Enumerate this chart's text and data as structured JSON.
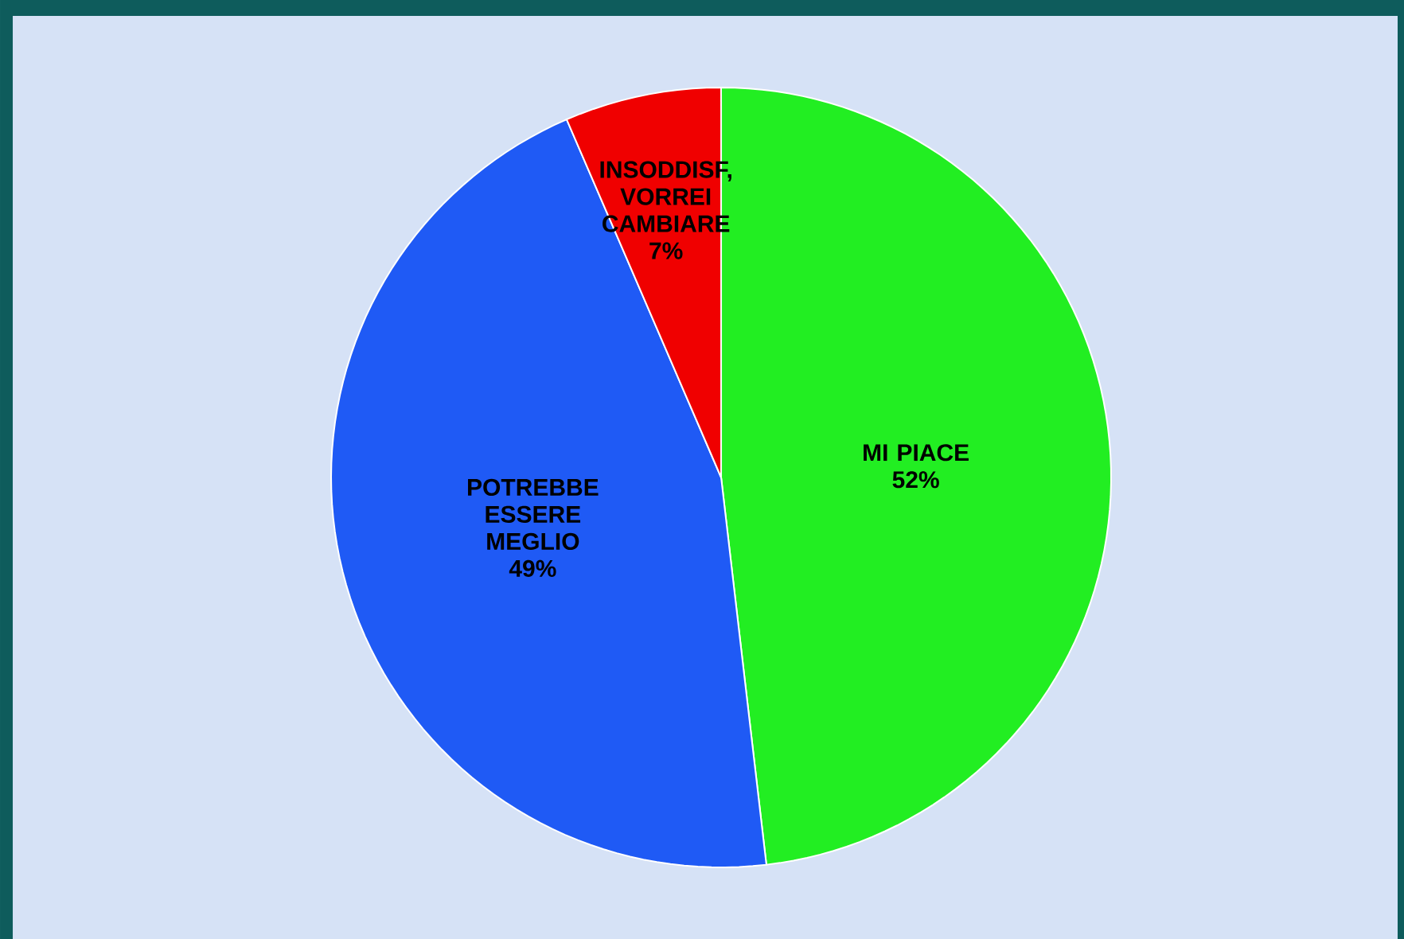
{
  "chart_data": {
    "type": "pie",
    "categories": [
      "MI PIACE",
      "POTREBBE ESSERE MEGLIO",
      "INSODDISF, VORREI CAMBIARE"
    ],
    "values": [
      52,
      49,
      7
    ],
    "value_labels": [
      "52%",
      "49%",
      "7%"
    ],
    "colors": [
      "#22ee22",
      "#1f5af5",
      "#f00000"
    ]
  }
}
